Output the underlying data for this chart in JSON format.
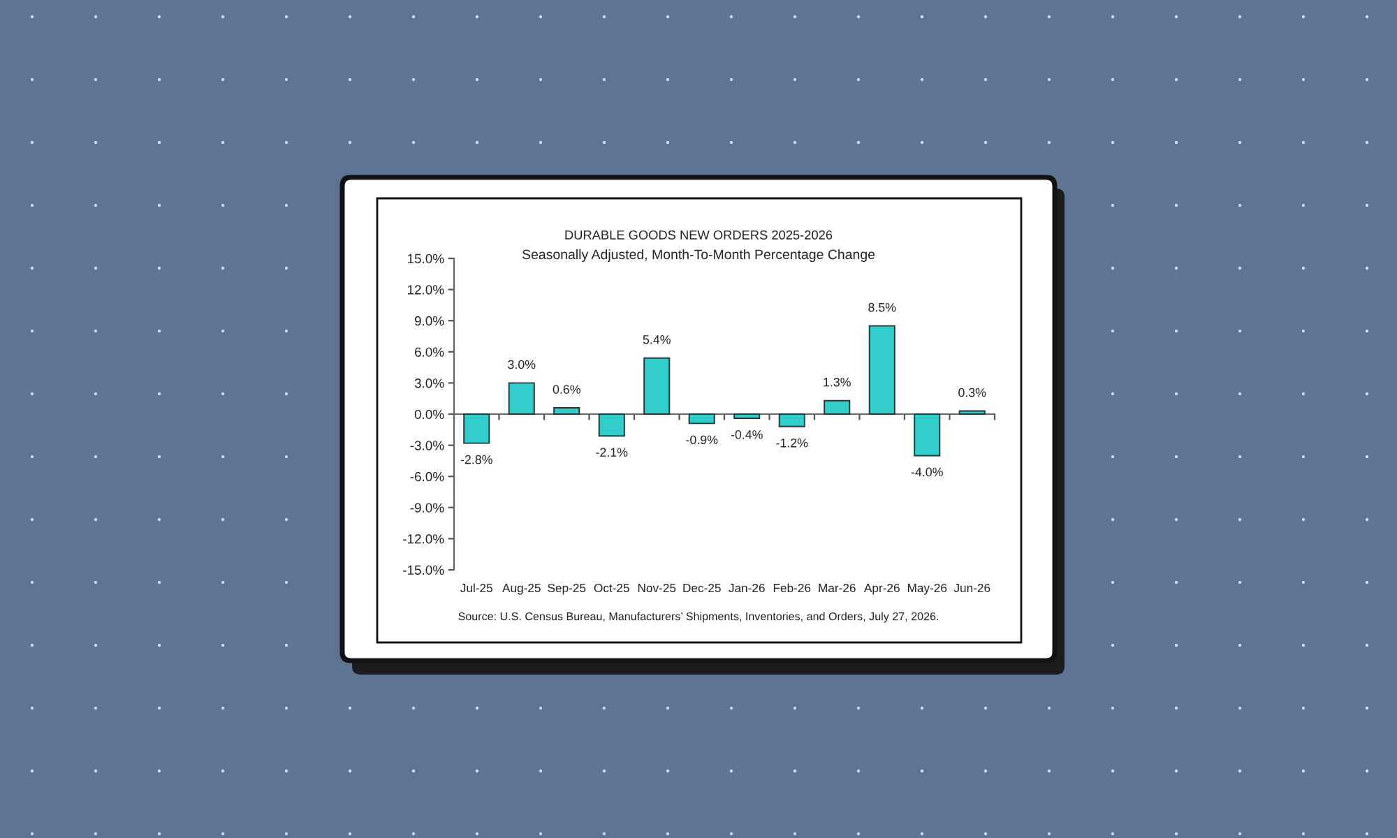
{
  "chart_data": {
    "type": "bar",
    "title": "DURABLE GOODS NEW ORDERS 2025-2026",
    "subtitle": "Seasonally Adjusted, Month-To-Month Percentage Change",
    "categories": [
      "Jul-25",
      "Aug-25",
      "Sep-25",
      "Oct-25",
      "Nov-25",
      "Dec-25",
      "Jan-26",
      "Feb-26",
      "Mar-26",
      "Apr-26",
      "May-26",
      "Jun-26"
    ],
    "values": [
      -2.8,
      3.0,
      0.6,
      -2.1,
      5.4,
      -0.9,
      -0.4,
      -1.2,
      1.3,
      8.5,
      -4.0,
      0.3
    ],
    "color": "#33cccc",
    "value_labels": [
      "-2.8%",
      "3.0%",
      "0.6%",
      "-2.1%",
      "5.4%",
      "-0.9%",
      "-0.4%",
      "-1.2%",
      "1.3%",
      "8.5%",
      "-4.0%",
      "0.3%"
    ],
    "ylim": [
      -15,
      15
    ],
    "yticks": [
      {
        "value": -15,
        "label": "-15.0%"
      },
      {
        "value": -12,
        "label": "-12.0%"
      },
      {
        "value": -9,
        "label": "-9.0%"
      },
      {
        "value": -6,
        "label": "-6.0%"
      },
      {
        "value": -3,
        "label": "-3.0%"
      },
      {
        "value": 0,
        "label": "0.0%"
      },
      {
        "value": 3,
        "label": "3.0%"
      },
      {
        "value": 6,
        "label": "6.0%"
      },
      {
        "value": 9,
        "label": "9.0%"
      },
      {
        "value": 12,
        "label": "12.0%"
      },
      {
        "value": 15,
        "label": "15.0%"
      }
    ],
    "annotations": [
      "Source: U.S. Census Bureau, Manufacturers’ Shipments, Inventories, and Orders, July 27, 2026."
    ]
  }
}
